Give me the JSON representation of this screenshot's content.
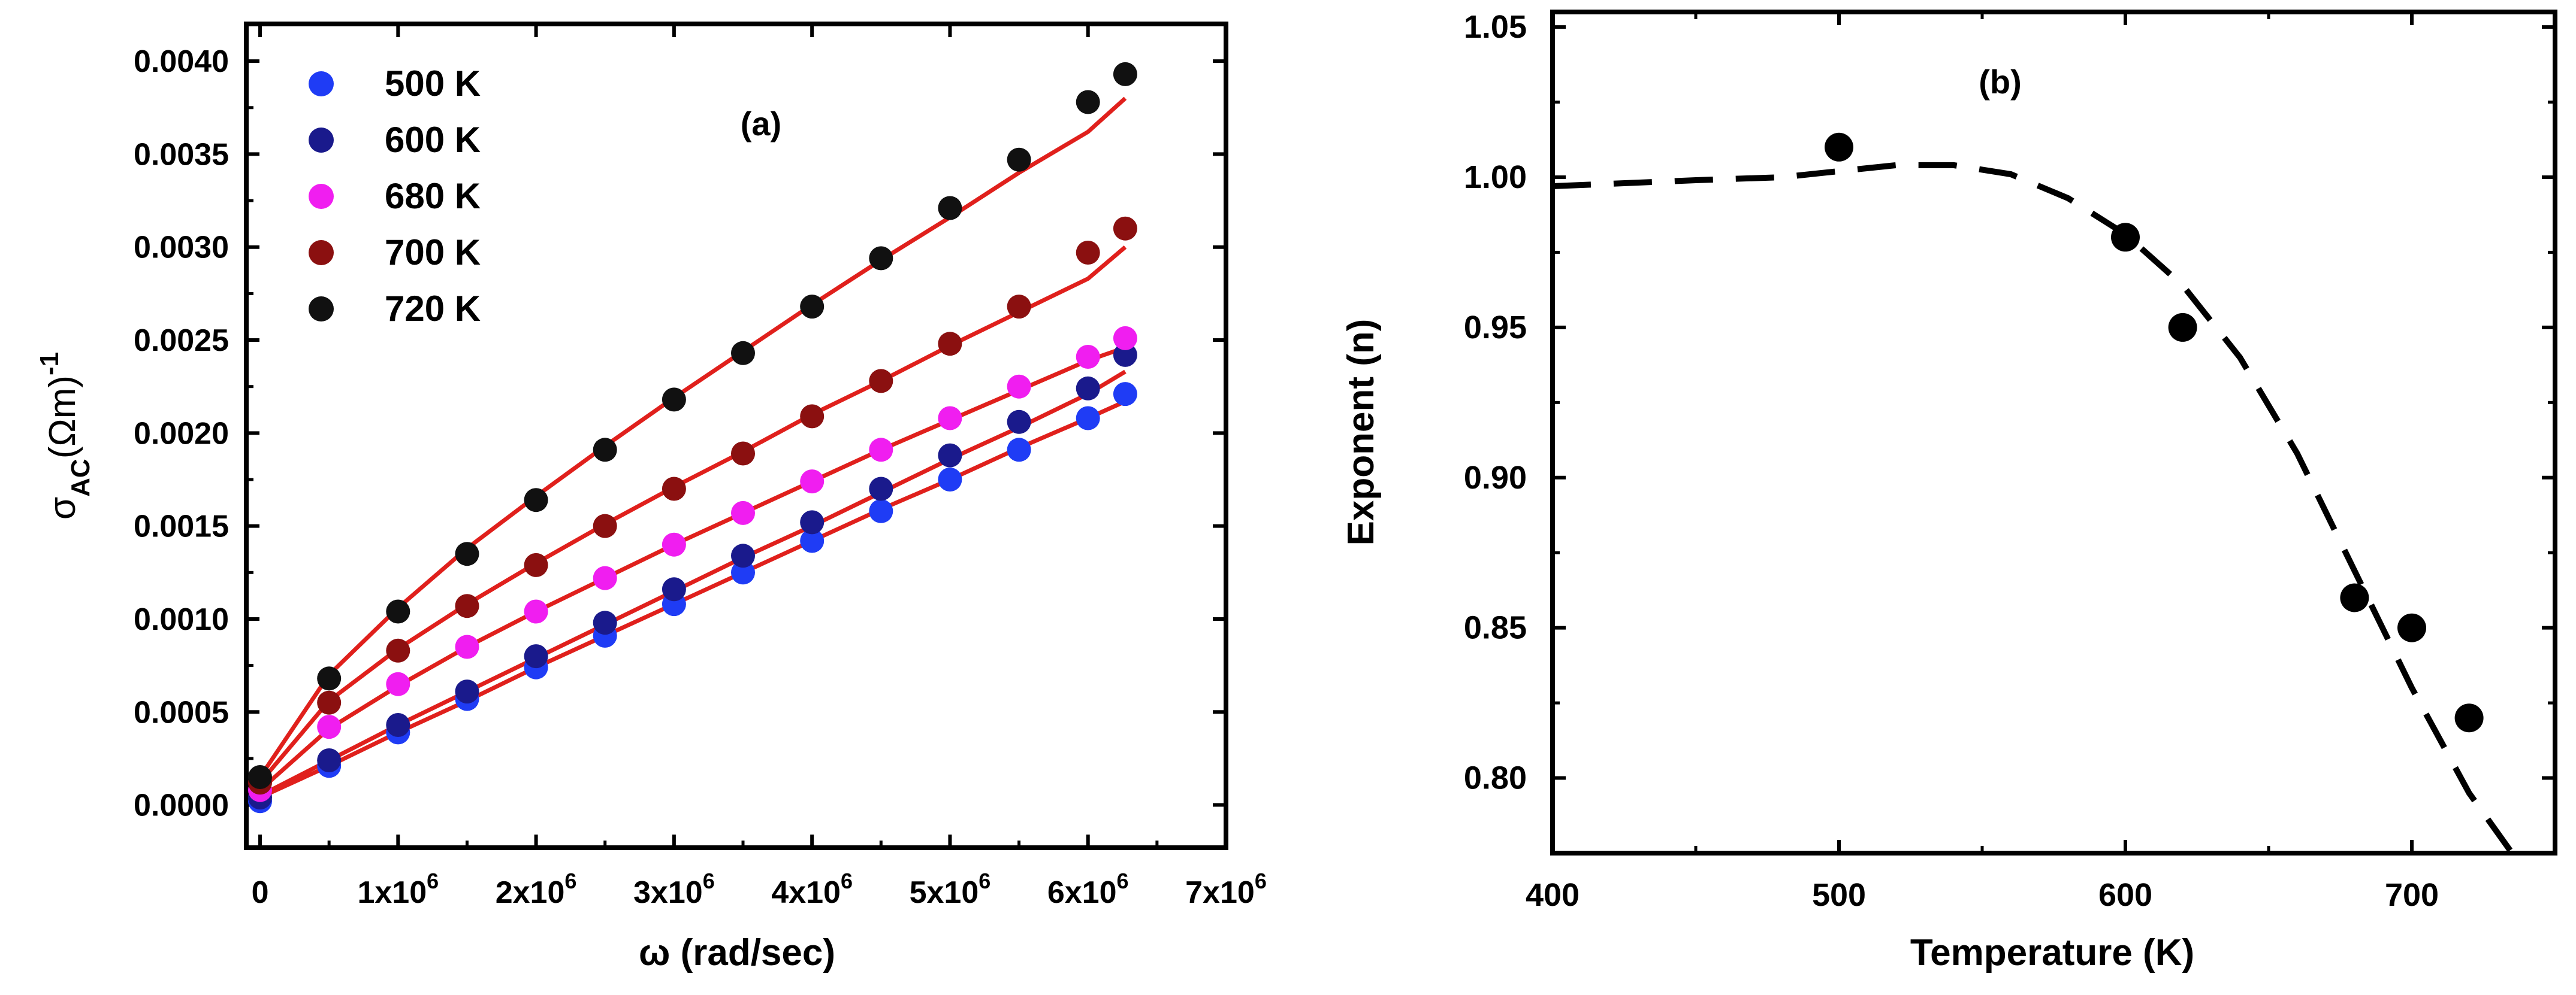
{
  "chart_data": [
    {
      "id": "a",
      "type": "scatter",
      "panel_label": "(a)",
      "xlabel": "ω (rad/sec)",
      "ylabel_main": "σ",
      "ylabel_sub": "AC",
      "ylabel_unit": "(Ωm)",
      "ylabel_sup": "-1",
      "xlim": [
        -100000,
        7000000
      ],
      "ylim": [
        -0.00023,
        0.0042
      ],
      "x_ticks": [
        {
          "value": 0,
          "base": "0",
          "sup": ""
        },
        {
          "value": 1000000,
          "base": "1x10",
          "sup": "6"
        },
        {
          "value": 2000000,
          "base": "2x10",
          "sup": "6"
        },
        {
          "value": 3000000,
          "base": "3x10",
          "sup": "6"
        },
        {
          "value": 4000000,
          "base": "4x10",
          "sup": "6"
        },
        {
          "value": 5000000,
          "base": "5x10",
          "sup": "6"
        },
        {
          "value": 6000000,
          "base": "6x10",
          "sup": "6"
        },
        {
          "value": 7000000,
          "base": "7x10",
          "sup": "6"
        }
      ],
      "y_ticks": [
        {
          "value": 0.0,
          "label": "0.0000"
        },
        {
          "value": 0.0005,
          "label": "0.0005"
        },
        {
          "value": 0.001,
          "label": "0.0010"
        },
        {
          "value": 0.0015,
          "label": "0.0015"
        },
        {
          "value": 0.002,
          "label": "0.0020"
        },
        {
          "value": 0.0025,
          "label": "0.0025"
        },
        {
          "value": 0.003,
          "label": "0.0030"
        },
        {
          "value": 0.0035,
          "label": "0.0035"
        },
        {
          "value": 0.004,
          "label": "0.0040"
        }
      ],
      "fit_color": "#e0201c",
      "legend_position": "top-left",
      "series": [
        {
          "name": "500 K",
          "color": "#1f3cf5",
          "x": [
            0,
            500000,
            1000000,
            1500000,
            2000000,
            2500000,
            3000000,
            3500000,
            4000000,
            4500000,
            5000000,
            5500000,
            6000000,
            6270000
          ],
          "y": [
            2e-05,
            0.00021,
            0.00039,
            0.00057,
            0.00074,
            0.00091,
            0.00108,
            0.00125,
            0.00142,
            0.00158,
            0.00175,
            0.00191,
            0.00208,
            0.00221
          ]
        },
        {
          "name": "600 K",
          "color": "#1a1a8c",
          "x": [
            0,
            500000,
            1000000,
            1500000,
            2000000,
            2500000,
            3000000,
            3500000,
            4000000,
            4500000,
            5000000,
            5500000,
            6000000,
            6270000
          ],
          "y": [
            4e-05,
            0.00024,
            0.00043,
            0.00061,
            0.0008,
            0.00098,
            0.00116,
            0.00134,
            0.00152,
            0.0017,
            0.00188,
            0.00206,
            0.00224,
            0.00242
          ]
        },
        {
          "name": "680 K",
          "color": "#f01ef0",
          "x": [
            0,
            500000,
            1000000,
            1500000,
            2000000,
            2500000,
            3000000,
            3500000,
            4000000,
            4500000,
            5000000,
            5500000,
            6000000,
            6270000
          ],
          "y": [
            8e-05,
            0.00042,
            0.00065,
            0.00085,
            0.00104,
            0.00122,
            0.0014,
            0.00157,
            0.00174,
            0.00191,
            0.00208,
            0.00225,
            0.00241,
            0.00251
          ]
        },
        {
          "name": "700 K",
          "color": "#8b1010",
          "x": [
            0,
            500000,
            1000000,
            1500000,
            2000000,
            2500000,
            3000000,
            3500000,
            4000000,
            4500000,
            5000000,
            5500000,
            6000000,
            6270000
          ],
          "y": [
            0.00012,
            0.00055,
            0.00083,
            0.00107,
            0.00129,
            0.0015,
            0.0017,
            0.00189,
            0.00209,
            0.00228,
            0.00248,
            0.00268,
            0.00297,
            0.0031
          ]
        },
        {
          "name": "720 K",
          "color": "#111111",
          "x": [
            0,
            500000,
            1000000,
            1500000,
            2000000,
            2500000,
            3000000,
            3500000,
            4000000,
            4500000,
            5000000,
            5500000,
            6000000,
            6270000
          ],
          "y": [
            0.00015,
            0.00068,
            0.00104,
            0.00135,
            0.00164,
            0.00191,
            0.00218,
            0.00243,
            0.00268,
            0.00294,
            0.00321,
            0.00347,
            0.00378,
            0.00393
          ]
        }
      ],
      "fits": [
        {
          "name": "500 K fit",
          "x": [
            0,
            500000,
            1000000,
            1500000,
            2000000,
            2500000,
            3000000,
            3500000,
            4000000,
            4500000,
            5000000,
            5500000,
            6000000,
            6270000
          ],
          "y": [
            4e-05,
            0.00021,
            0.00039,
            0.00056,
            0.00074,
            0.00091,
            0.00108,
            0.00125,
            0.00142,
            0.00159,
            0.00175,
            0.00192,
            0.00208,
            0.00217
          ]
        },
        {
          "name": "600 K fit",
          "x": [
            0,
            500000,
            1000000,
            1500000,
            2000000,
            2500000,
            3000000,
            3500000,
            4000000,
            4500000,
            5000000,
            5500000,
            6000000,
            6270000
          ],
          "y": [
            5e-05,
            0.00024,
            0.00043,
            0.00061,
            0.00079,
            0.00097,
            0.00115,
            0.00133,
            0.0015,
            0.00168,
            0.00186,
            0.00203,
            0.00221,
            0.00233
          ]
        },
        {
          "name": "680 K fit",
          "x": [
            0,
            500000,
            1000000,
            1500000,
            2000000,
            2500000,
            3000000,
            3500000,
            4000000,
            4500000,
            5000000,
            5500000,
            6000000,
            6270000
          ],
          "y": [
            8e-05,
            0.00041,
            0.00064,
            0.00085,
            0.00104,
            0.00122,
            0.0014,
            0.00157,
            0.00174,
            0.00191,
            0.00207,
            0.00223,
            0.00239,
            0.00246
          ]
        },
        {
          "name": "700 K fit",
          "x": [
            0,
            500000,
            1000000,
            1500000,
            2000000,
            2500000,
            3000000,
            3500000,
            4000000,
            4500000,
            5000000,
            5500000,
            6000000,
            6270000
          ],
          "y": [
            0.00012,
            0.00056,
            0.00084,
            0.00108,
            0.0013,
            0.00151,
            0.00171,
            0.0019,
            0.0021,
            0.00228,
            0.00247,
            0.00265,
            0.00283,
            0.003
          ]
        },
        {
          "name": "720 K fit",
          "x": [
            0,
            500000,
            1000000,
            1500000,
            2000000,
            2500000,
            3000000,
            3500000,
            4000000,
            4500000,
            5000000,
            5500000,
            6000000,
            6270000
          ],
          "y": [
            0.00015,
            0.0007,
            0.00106,
            0.00138,
            0.00166,
            0.00193,
            0.00219,
            0.00244,
            0.00269,
            0.00293,
            0.00316,
            0.0034,
            0.00362,
            0.0038
          ]
        }
      ]
    },
    {
      "id": "b",
      "type": "scatter",
      "panel_label": "(b)",
      "xlabel": "Temperature (K)",
      "ylabel": "Exponent (n)",
      "xlim": [
        400,
        750
      ],
      "ylim": [
        0.775,
        1.055
      ],
      "x_ticks": [
        {
          "value": 400,
          "label": "400"
        },
        {
          "value": 500,
          "label": "500"
        },
        {
          "value": 600,
          "label": "600"
        },
        {
          "value": 700,
          "label": "700"
        }
      ],
      "y_ticks": [
        {
          "value": 0.8,
          "label": "0.80"
        },
        {
          "value": 0.85,
          "label": "0.85"
        },
        {
          "value": 0.9,
          "label": "0.90"
        },
        {
          "value": 0.95,
          "label": "0.95"
        },
        {
          "value": 1.0,
          "label": "1.00"
        },
        {
          "value": 1.05,
          "label": "1.05"
        }
      ],
      "point_color": "#000000",
      "points": {
        "x": [
          500,
          600,
          620,
          680,
          700,
          720
        ],
        "y": [
          1.01,
          0.98,
          0.95,
          0.86,
          0.85,
          0.82
        ]
      },
      "trend": {
        "style": "dashed",
        "x": [
          400,
          450,
          480,
          500,
          520,
          540,
          560,
          580,
          600,
          620,
          640,
          660,
          680,
          700,
          720,
          735
        ],
        "y": [
          0.997,
          0.999,
          1.0,
          1.002,
          1.004,
          1.004,
          1.001,
          0.993,
          0.981,
          0.964,
          0.94,
          0.908,
          0.869,
          0.83,
          0.795,
          0.775
        ]
      }
    }
  ]
}
